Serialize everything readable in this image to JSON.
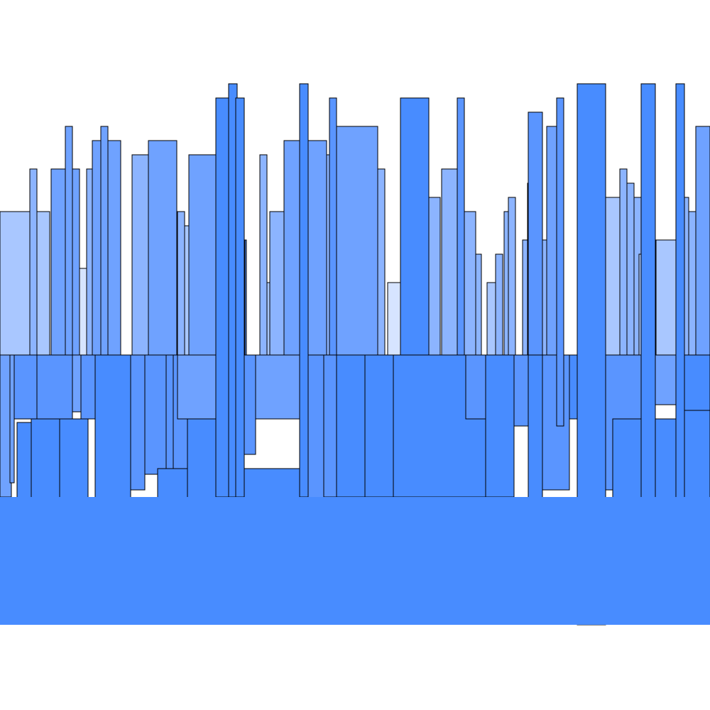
{
  "palette": {
    "background": "#ffffff",
    "stroke": "#000000",
    "base_fill": "#488cff",
    "shades": [
      "#d6e4ff",
      "#a9c7ff",
      "#8cb4ff",
      "#6fa2ff",
      "#5a95ff",
      "#488cff"
    ]
  }
}
